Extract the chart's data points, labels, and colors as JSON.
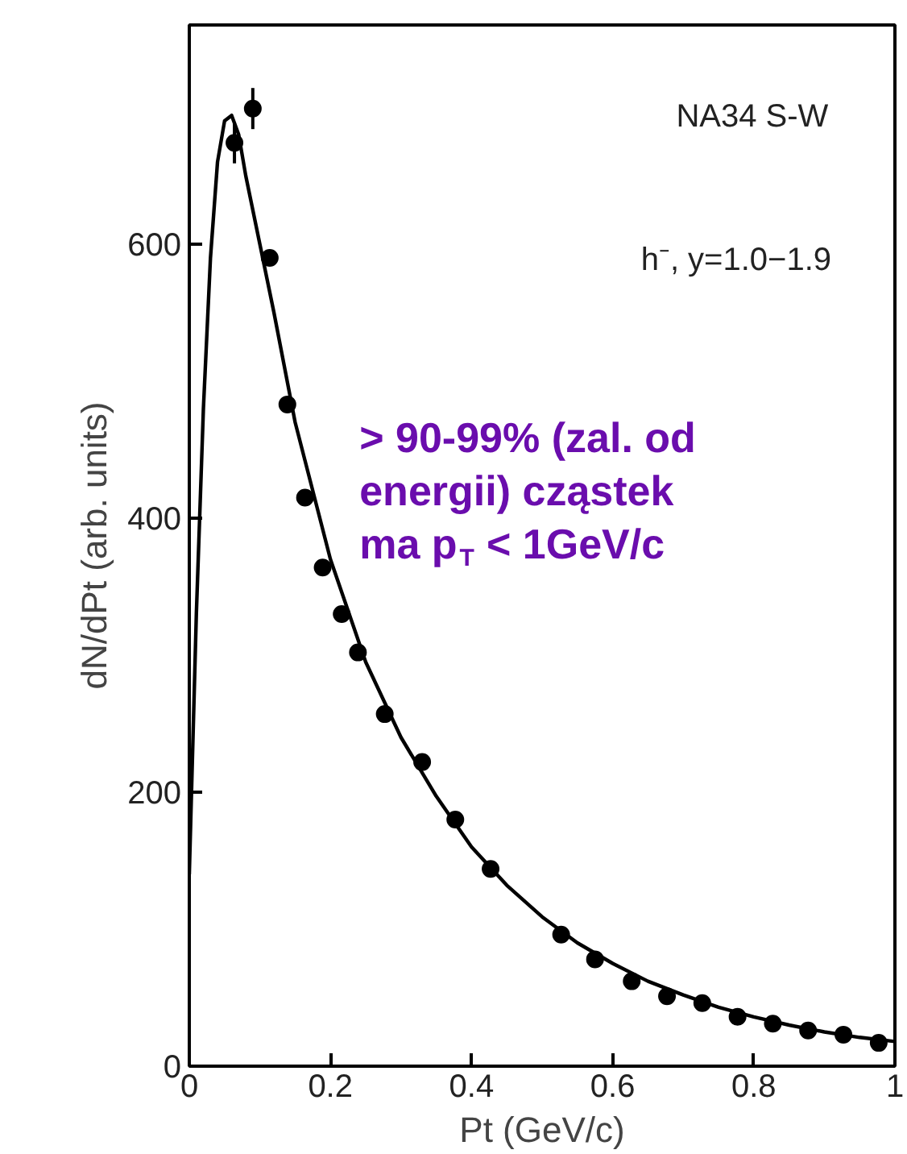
{
  "chart_data": {
    "type": "scatter",
    "xlabel": "Pt (GeV/c)",
    "ylabel": "dN/dPt (arb. units)",
    "xlim": [
      0,
      1
    ],
    "ylim": [
      0,
      760
    ],
    "xticks": [
      0,
      0.2,
      0.4,
      0.6,
      0.8,
      1
    ],
    "yticks": [
      0,
      200,
      400,
      600
    ],
    "grid": false,
    "marker": "circle",
    "annotations": [
      "NA34 S-W",
      "h⁻, y=1.0−1.9",
      "> 90-99% (zal. od energii) cząstek ma p$_{T}$ < 1GeV/c"
    ],
    "series": [
      {
        "color": "#000000",
        "x": [
          0.064,
          0.09,
          0.114,
          0.139,
          0.164,
          0.189,
          0.216,
          0.239,
          0.277,
          0.33,
          0.377,
          0.427,
          0.527,
          0.575,
          0.627,
          0.677,
          0.727,
          0.777,
          0.827,
          0.877,
          0.927,
          0.977
        ],
        "values": [
          674,
          699,
          590,
          483,
          415,
          364,
          330,
          302,
          257,
          222,
          180,
          144,
          96,
          78,
          62,
          51,
          46,
          36,
          31,
          26,
          23,
          17
        ],
        "errors": [
          15,
          15,
          null,
          null,
          null,
          null,
          null,
          null,
          null,
          null,
          null,
          null,
          null,
          null,
          null,
          null,
          null,
          null,
          null,
          null,
          null,
          null
        ]
      },
      {
        "type": "line",
        "color": "#000000",
        "line_style": "solid",
        "marker": "none",
        "x": [
          0.0,
          0.01,
          0.02,
          0.03,
          0.04,
          0.05,
          0.06,
          0.07,
          0.08,
          0.1,
          0.12,
          0.15,
          0.2,
          0.25,
          0.3,
          0.35,
          0.4,
          0.45,
          0.5,
          0.55,
          0.6,
          0.65,
          0.7,
          0.75,
          0.8,
          0.85,
          0.9,
          0.95,
          1.0
        ],
        "values": [
          140,
          330,
          480,
          590,
          660,
          690,
          694,
          680,
          650,
          600,
          550,
          470,
          370,
          295,
          240,
          197,
          160,
          132,
          109,
          90,
          75,
          62,
          52,
          43,
          36,
          30,
          25,
          21,
          18
        ]
      }
    ]
  }
}
